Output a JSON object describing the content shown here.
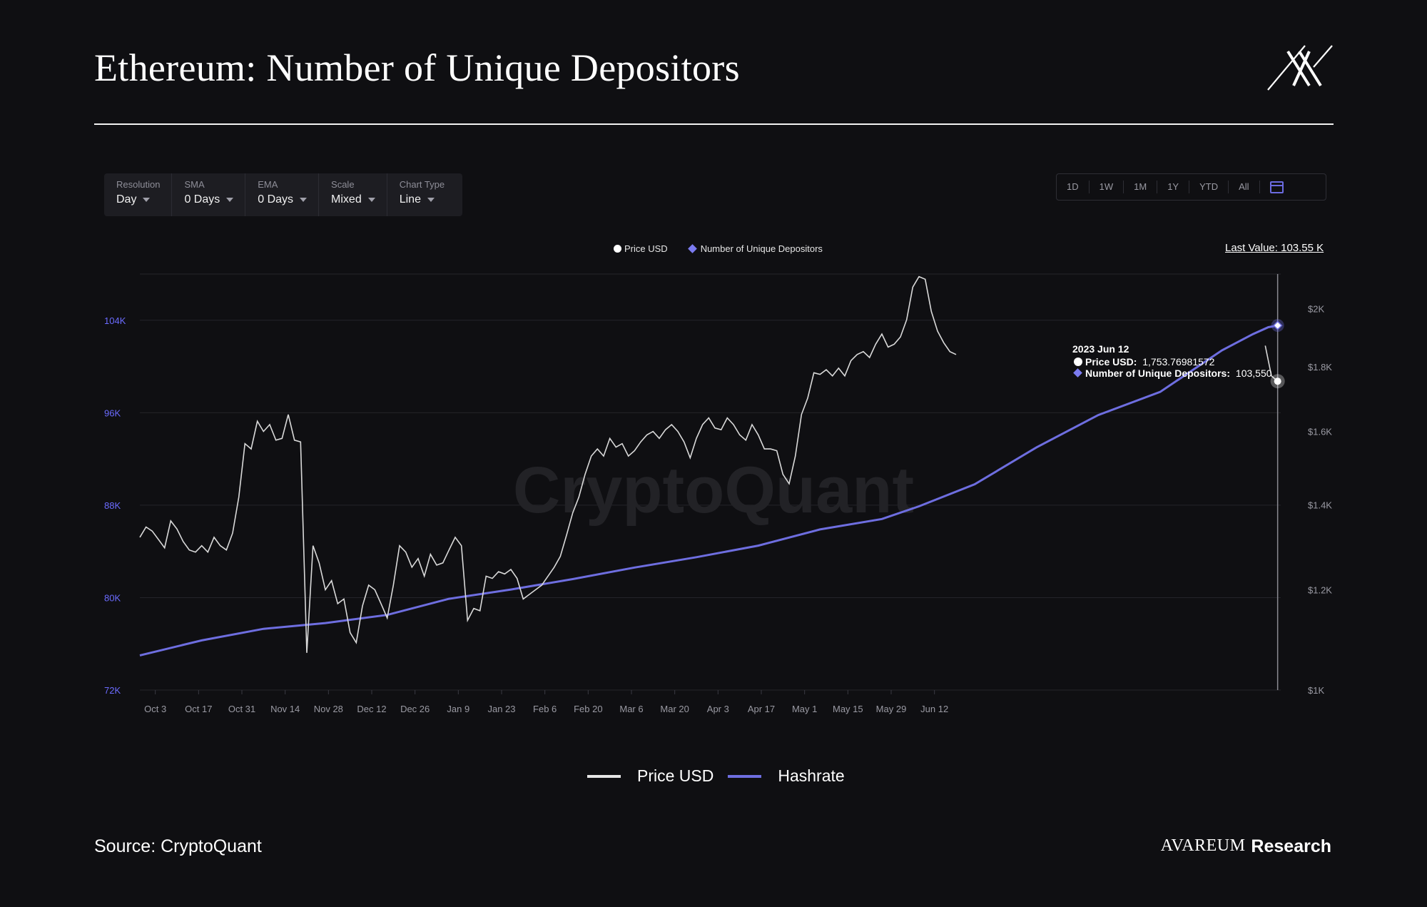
{
  "title": "Ethereum: Number of Unique Depositors",
  "toolbar": {
    "resolution": {
      "label": "Resolution",
      "value": "Day"
    },
    "sma": {
      "label": "SMA",
      "value": "0 Days"
    },
    "ema": {
      "label": "EMA",
      "value": "0 Days"
    },
    "scale": {
      "label": "Scale",
      "value": "Mixed"
    },
    "chart_type": {
      "label": "Chart Type",
      "value": "Line"
    }
  },
  "range_buttons": [
    "1D",
    "1W",
    "1M",
    "1Y",
    "YTD",
    "All"
  ],
  "top_legend": {
    "price": "Price USD",
    "depositors": "Number of Unique Depositors"
  },
  "last_value": "Last Value: 103.55 K",
  "watermark": "CryptoQuant",
  "tooltip": {
    "date": "2023 Jun 12",
    "price_label": "Price USD:",
    "price_value": "1,753.76981572",
    "depositors_label": "Number of Unique Depositors:",
    "depositors_value": "103,550"
  },
  "bottom_legend": {
    "price": "Price USD",
    "hashrate": "Hashrate"
  },
  "source": "Source: CryptoQuant",
  "footer_brand": {
    "name": "AVAREUM",
    "suffix": "Research"
  },
  "colors": {
    "price": "#d9d9d9",
    "depositors": "#6e6ee0",
    "axis_left": "#6b6bff",
    "axis_right": "#9a9aa3"
  },
  "chart_data": {
    "type": "line",
    "x_ticks": [
      "Oct 3",
      "Oct 17",
      "Oct 31",
      "Nov 14",
      "Nov 28",
      "Dec 12",
      "Dec 26",
      "Jan 9",
      "Jan 23",
      "Feb 6",
      "Feb 20",
      "Mar 6",
      "Mar 20",
      "Apr 3",
      "Apr 17",
      "May 1",
      "May 15",
      "May 29",
      "Jun 12"
    ],
    "y_left_ticks": [
      "72K",
      "80K",
      "88K",
      "96K",
      "104K"
    ],
    "y_right_ticks": [
      "$1K",
      "$1.2K",
      "$1.4K",
      "$1.6K",
      "$1.8K",
      "$2K"
    ],
    "y_left_range": [
      72000,
      108000
    ],
    "y_right_range": [
      1000,
      2130
    ],
    "y_right_scale": "log",
    "series": [
      {
        "name": "Price USD",
        "axis": "right",
        "points": [
          [
            0,
            1320
          ],
          [
            2,
            1345
          ],
          [
            4,
            1335
          ],
          [
            6,
            1315
          ],
          [
            8,
            1295
          ],
          [
            10,
            1360
          ],
          [
            12,
            1340
          ],
          [
            14,
            1310
          ],
          [
            16,
            1290
          ],
          [
            18,
            1285
          ],
          [
            20,
            1300
          ],
          [
            22,
            1285
          ],
          [
            24,
            1320
          ],
          [
            26,
            1300
          ],
          [
            28,
            1290
          ],
          [
            30,
            1330
          ],
          [
            32,
            1420
          ],
          [
            34,
            1565
          ],
          [
            36,
            1550
          ],
          [
            38,
            1630
          ],
          [
            40,
            1600
          ],
          [
            42,
            1620
          ],
          [
            44,
            1575
          ],
          [
            46,
            1580
          ],
          [
            48,
            1650
          ],
          [
            50,
            1575
          ],
          [
            52,
            1570
          ],
          [
            54,
            1070
          ],
          [
            56,
            1300
          ],
          [
            58,
            1260
          ],
          [
            60,
            1200
          ],
          [
            62,
            1220
          ],
          [
            64,
            1170
          ],
          [
            66,
            1180
          ],
          [
            68,
            1110
          ],
          [
            70,
            1090
          ],
          [
            72,
            1165
          ],
          [
            74,
            1210
          ],
          [
            76,
            1200
          ],
          [
            78,
            1170
          ],
          [
            80,
            1140
          ],
          [
            82,
            1210
          ],
          [
            84,
            1300
          ],
          [
            86,
            1285
          ],
          [
            88,
            1250
          ],
          [
            90,
            1270
          ],
          [
            92,
            1230
          ],
          [
            94,
            1280
          ],
          [
            96,
            1255
          ],
          [
            98,
            1260
          ],
          [
            100,
            1290
          ],
          [
            102,
            1320
          ],
          [
            104,
            1300
          ],
          [
            106,
            1135
          ],
          [
            108,
            1160
          ],
          [
            110,
            1155
          ],
          [
            112,
            1230
          ],
          [
            114,
            1225
          ],
          [
            116,
            1240
          ],
          [
            118,
            1235
          ],
          [
            120,
            1245
          ],
          [
            122,
            1225
          ],
          [
            124,
            1180
          ],
          [
            126,
            1190
          ],
          [
            128,
            1200
          ],
          [
            130,
            1210
          ],
          [
            132,
            1230
          ],
          [
            134,
            1250
          ],
          [
            136,
            1275
          ],
          [
            138,
            1325
          ],
          [
            140,
            1380
          ],
          [
            142,
            1420
          ],
          [
            144,
            1480
          ],
          [
            146,
            1530
          ],
          [
            148,
            1550
          ],
          [
            150,
            1530
          ],
          [
            152,
            1580
          ],
          [
            154,
            1555
          ],
          [
            156,
            1565
          ],
          [
            158,
            1530
          ],
          [
            160,
            1545
          ],
          [
            162,
            1570
          ],
          [
            164,
            1590
          ],
          [
            166,
            1600
          ],
          [
            168,
            1580
          ],
          [
            170,
            1605
          ],
          [
            172,
            1620
          ],
          [
            174,
            1600
          ],
          [
            176,
            1570
          ],
          [
            178,
            1525
          ],
          [
            180,
            1580
          ],
          [
            182,
            1620
          ],
          [
            184,
            1640
          ],
          [
            186,
            1610
          ],
          [
            188,
            1605
          ],
          [
            190,
            1640
          ],
          [
            192,
            1620
          ],
          [
            194,
            1590
          ],
          [
            196,
            1575
          ],
          [
            198,
            1620
          ],
          [
            200,
            1590
          ],
          [
            202,
            1550
          ],
          [
            204,
            1550
          ],
          [
            206,
            1545
          ],
          [
            208,
            1480
          ],
          [
            210,
            1455
          ],
          [
            212,
            1530
          ],
          [
            214,
            1650
          ],
          [
            216,
            1700
          ],
          [
            218,
            1780
          ],
          [
            220,
            1775
          ],
          [
            222,
            1790
          ],
          [
            224,
            1770
          ],
          [
            226,
            1795
          ],
          [
            228,
            1770
          ],
          [
            230,
            1820
          ],
          [
            232,
            1840
          ],
          [
            234,
            1850
          ],
          [
            236,
            1830
          ],
          [
            238,
            1875
          ],
          [
            240,
            1910
          ],
          [
            242,
            1865
          ],
          [
            244,
            1875
          ],
          [
            246,
            1900
          ],
          [
            248,
            1960
          ],
          [
            250,
            2080
          ],
          [
            252,
            2120
          ],
          [
            254,
            2110
          ],
          [
            256,
            1990
          ],
          [
            258,
            1920
          ],
          [
            260,
            1880
          ],
          [
            262,
            1850
          ],
          [
            264,
            1840
          ]
        ],
        "tail_points": [
          [
            364,
            1870
          ],
          [
            366,
            1770
          ],
          [
            368,
            1753
          ]
        ]
      },
      {
        "name": "Number of Unique Depositors",
        "axis": "left",
        "points": [
          [
            0,
            75000
          ],
          [
            20,
            76300
          ],
          [
            40,
            77300
          ],
          [
            60,
            77800
          ],
          [
            80,
            78500
          ],
          [
            100,
            79900
          ],
          [
            120,
            80700
          ],
          [
            140,
            81600
          ],
          [
            160,
            82600
          ],
          [
            180,
            83500
          ],
          [
            200,
            84500
          ],
          [
            220,
            85900
          ],
          [
            240,
            86800
          ],
          [
            252,
            87900
          ],
          [
            270,
            89800
          ],
          [
            290,
            93000
          ],
          [
            310,
            95800
          ],
          [
            330,
            97800
          ],
          [
            350,
            101400
          ],
          [
            360,
            102800
          ],
          [
            365,
            103400
          ],
          [
            368,
            103550
          ]
        ]
      }
    ],
    "tooltip_date": "2023 Jun 12",
    "last_value": 103550
  }
}
